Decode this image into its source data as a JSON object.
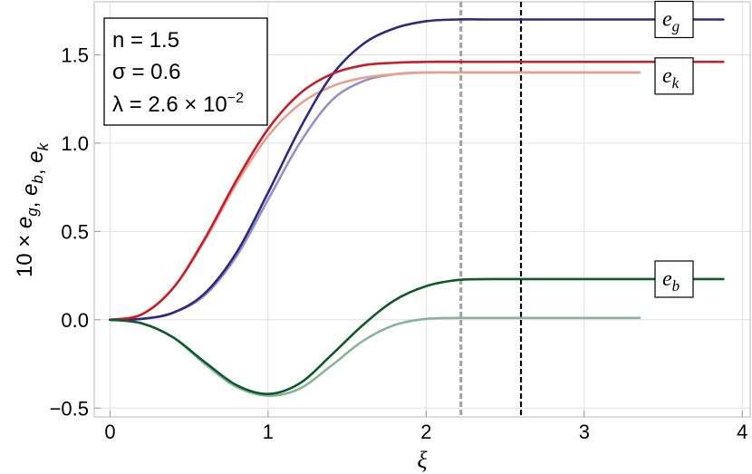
{
  "chart_data": {
    "type": "line",
    "xlabel": "ξ",
    "ylabel": "10 × e_g, e_b, e_k",
    "xlim": [
      -0.1,
      4.05
    ],
    "ylim": [
      -0.55,
      1.8
    ],
    "x_ticks": [
      "0",
      "1",
      "2",
      "3",
      "4"
    ],
    "y_ticks": [
      "−0.5",
      "0.0",
      "0.5",
      "1.0",
      "1.5"
    ],
    "grid": true,
    "annotation": {
      "n": "n = 1.5",
      "sigma": "σ = 0.6",
      "lambda_prefix": "λ = 2.6 × 10",
      "lambda_exp": "−2"
    },
    "vertical_lines": [
      {
        "x": 2.22,
        "style": "dashed",
        "color": "#a0a0a0"
      },
      {
        "x": 2.6,
        "style": "dashed",
        "color": "#000000"
      }
    ],
    "series_labels": [
      {
        "main": "e",
        "sub": "g",
        "color": "#2e2a80",
        "y": 1.7
      },
      {
        "main": "e",
        "sub": "k",
        "color": "#c81e28",
        "y": 1.38
      },
      {
        "main": "e",
        "sub": "b",
        "color": "#0f5a2a",
        "y": 0.23
      }
    ],
    "series": [
      {
        "key": "eg",
        "color": "#2e2a80",
        "width": 2.6,
        "x": [
          0,
          0.2,
          0.4,
          0.6,
          0.8,
          1.0,
          1.2,
          1.4,
          1.6,
          1.8,
          2.0,
          2.2,
          2.4,
          2.6,
          3.0,
          3.5,
          3.88
        ],
        "values": [
          0.0,
          0.005,
          0.04,
          0.15,
          0.38,
          0.72,
          1.08,
          1.38,
          1.56,
          1.65,
          1.69,
          1.7,
          1.7,
          1.7,
          1.7,
          1.7,
          1.7
        ]
      },
      {
        "key": "ek",
        "color": "#c81e28",
        "width": 2.6,
        "x": [
          0,
          0.2,
          0.4,
          0.6,
          0.8,
          1.0,
          1.2,
          1.4,
          1.6,
          1.8,
          2.0,
          2.2,
          2.4,
          2.6,
          3.0,
          3.5,
          3.88
        ],
        "values": [
          0.0,
          0.03,
          0.18,
          0.46,
          0.79,
          1.08,
          1.28,
          1.39,
          1.44,
          1.455,
          1.46,
          1.46,
          1.46,
          1.46,
          1.46,
          1.46,
          1.46
        ]
      },
      {
        "key": "eb",
        "color": "#0f5a2a",
        "width": 2.6,
        "x": [
          0,
          0.2,
          0.4,
          0.6,
          0.8,
          1.0,
          1.2,
          1.4,
          1.6,
          1.8,
          2.0,
          2.2,
          2.4,
          2.6,
          3.0,
          3.5,
          3.88
        ],
        "values": [
          0.0,
          -0.02,
          -0.1,
          -0.24,
          -0.37,
          -0.42,
          -0.36,
          -0.2,
          -0.03,
          0.11,
          0.19,
          0.225,
          0.23,
          0.23,
          0.23,
          0.23,
          0.23
        ]
      },
      {
        "key": "eg_light",
        "color": "#9590c8",
        "width": 2.6,
        "x": [
          0,
          0.2,
          0.4,
          0.6,
          0.8,
          1.0,
          1.2,
          1.4,
          1.6,
          1.8,
          2.0,
          2.2,
          2.4,
          2.6,
          3.0,
          3.35
        ],
        "values": [
          0.0,
          0.005,
          0.04,
          0.14,
          0.36,
          0.68,
          1.0,
          1.24,
          1.35,
          1.39,
          1.4,
          1.4,
          1.4,
          1.4,
          1.4,
          1.4
        ]
      },
      {
        "key": "ek_light",
        "color": "#e8a090",
        "width": 2.6,
        "x": [
          0,
          0.2,
          0.4,
          0.6,
          0.8,
          1.0,
          1.2,
          1.4,
          1.6,
          1.8,
          2.0,
          2.2,
          2.4,
          2.6,
          3.0,
          3.35
        ],
        "values": [
          0.0,
          0.03,
          0.18,
          0.45,
          0.77,
          1.04,
          1.22,
          1.32,
          1.37,
          1.39,
          1.4,
          1.4,
          1.4,
          1.4,
          1.4,
          1.4
        ]
      },
      {
        "key": "eb_light",
        "color": "#88b498",
        "width": 2.6,
        "x": [
          0,
          0.2,
          0.4,
          0.6,
          0.8,
          1.0,
          1.2,
          1.4,
          1.6,
          1.8,
          2.0,
          2.2,
          2.4,
          2.6,
          3.0,
          3.35
        ],
        "values": [
          0.0,
          -0.02,
          -0.1,
          -0.25,
          -0.38,
          -0.43,
          -0.39,
          -0.26,
          -0.12,
          -0.03,
          0.005,
          0.01,
          0.01,
          0.01,
          0.01,
          0.01
        ]
      }
    ]
  }
}
